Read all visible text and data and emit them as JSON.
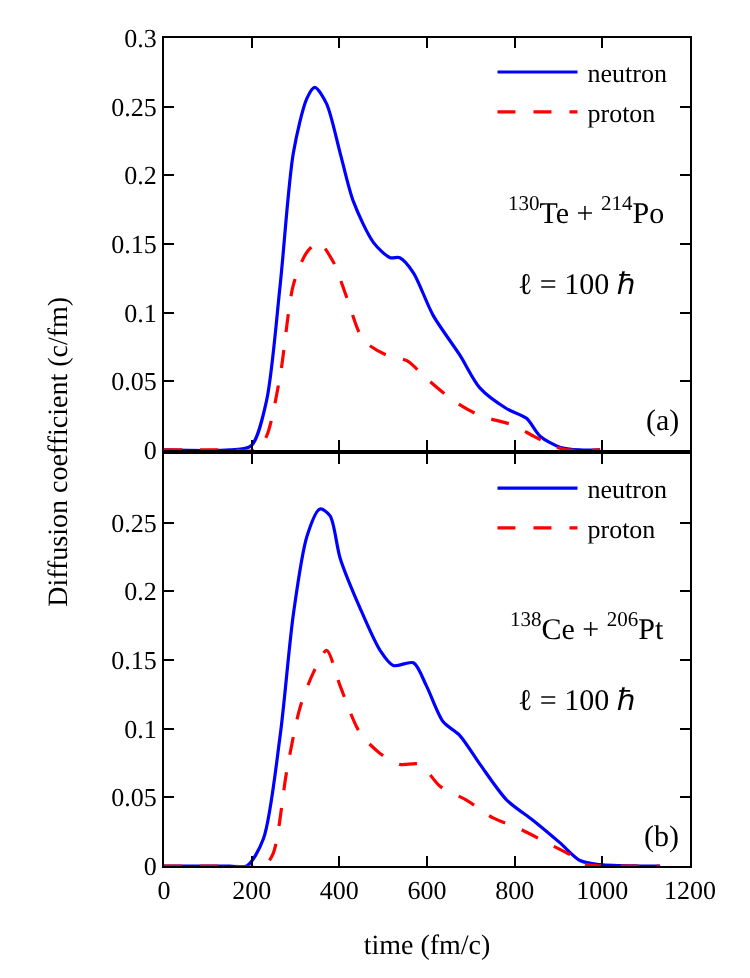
{
  "chart_data": [
    {
      "type": "line",
      "ylabel": "Diffusion coefficient (c/fm)",
      "xlim": [
        0,
        1200
      ],
      "ylim": [
        0,
        0.3
      ],
      "xticks": [
        0,
        200,
        400,
        600,
        800,
        1000,
        1200
      ],
      "yticks": [
        0,
        0.05,
        0.1,
        0.15,
        0.2,
        0.25,
        0.3
      ],
      "tick_labels": "y",
      "legend": "top right",
      "marker": "none",
      "annotations": [
        "$^{130}$Te + $^{214}$Po",
        "ℓ = 100 ℏ",
        "(a)"
      ],
      "series": [
        {
          "name": "neutron",
          "color": "#0000ff",
          "line_style": "solid",
          "x": [
            0,
            150,
            199,
            234,
            265,
            295,
            326,
            344,
            371,
            402,
            432,
            478,
            516,
            538,
            569,
            614,
            675,
            721,
            782,
            827,
            858,
            903,
            949,
            995
          ],
          "values": [
            0,
            0,
            0.003,
            0.036,
            0.12,
            0.216,
            0.256,
            0.264,
            0.252,
            0.216,
            0.181,
            0.151,
            0.14,
            0.14,
            0.129,
            0.098,
            0.069,
            0.045,
            0.03,
            0.023,
            0.01,
            0.002,
            0,
            0
          ]
        },
        {
          "name": "proton",
          "color": "#ff0000",
          "line_style": "dashed",
          "x": [
            0,
            150,
            211,
            234,
            265,
            295,
            326,
            353,
            386,
            417,
            455,
            508,
            554,
            599,
            660,
            721,
            797,
            843,
            888,
            919,
            995
          ],
          "values": [
            0,
            0,
            0,
            0.01,
            0.054,
            0.12,
            0.144,
            0.151,
            0.137,
            0.111,
            0.08,
            0.069,
            0.065,
            0.052,
            0.036,
            0.025,
            0.018,
            0.01,
            0.003,
            0,
            0
          ]
        }
      ]
    },
    {
      "type": "line",
      "xlabel": "time (fm/c)",
      "xlim": [
        0,
        1200
      ],
      "ylim": [
        0,
        0.3
      ],
      "xticks": [
        0,
        200,
        400,
        600,
        800,
        1000,
        1200
      ],
      "yticks": [
        0,
        0.05,
        0.1,
        0.15,
        0.2,
        0.25,
        {
          "value": 0.3,
          "label": null
        }
      ],
      "legend": "top right",
      "marker": "none",
      "annotations": [
        "$^{138}$Ce + $^{206}$Pt",
        "ℓ = 100 ℏ",
        "(b)"
      ],
      "series": [
        {
          "name": "neutron",
          "color": "#0000ff",
          "line_style": "solid",
          "x": [
            0,
            150,
            189,
            227,
            265,
            295,
            326,
            356,
            379,
            402,
            447,
            493,
            523,
            569,
            599,
            637,
            675,
            721,
            782,
            843,
            903,
            949,
            995,
            1086,
            1132
          ],
          "values": [
            0,
            0,
            0,
            0.02,
            0.095,
            0.183,
            0.24,
            0.26,
            0.255,
            0.224,
            0.188,
            0.157,
            0.146,
            0.148,
            0.131,
            0.105,
            0.095,
            0.074,
            0.048,
            0.033,
            0.017,
            0.004,
            0.001,
            0,
            0
          ]
        },
        {
          "name": "proton",
          "color": "#ff0000",
          "line_style": "dashed",
          "x": [
            0,
            150,
            227,
            249,
            280,
            310,
            341,
            371,
            402,
            447,
            493,
            538,
            584,
            630,
            690,
            751,
            812,
            873,
            934,
            964,
            1040,
            1130
          ],
          "values": [
            0,
            0,
            0,
            0.009,
            0.069,
            0.115,
            0.141,
            0.157,
            0.131,
            0.097,
            0.082,
            0.074,
            0.074,
            0.058,
            0.048,
            0.035,
            0.027,
            0.017,
            0.007,
            0.001,
            0,
            0
          ]
        }
      ]
    }
  ]
}
